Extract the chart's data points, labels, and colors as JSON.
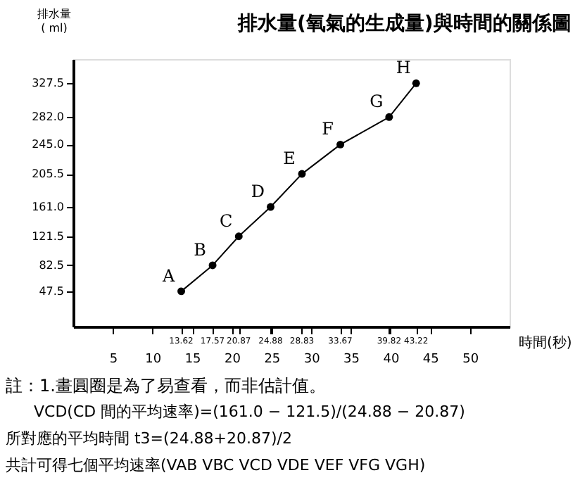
{
  "chart_data": {
    "type": "line",
    "title": "排水量(氧氣的生成量)與時間的關係圖",
    "xlabel": "時間(秒)",
    "ylabel": "排水量\n( ml)",
    "x": [
      13.62,
      17.57,
      20.87,
      24.88,
      28.83,
      33.67,
      39.82,
      43.22
    ],
    "series": [
      {
        "color": "#000000",
        "values": [
          47.5,
          82.5,
          121.5,
          161.0,
          205.5,
          245.0,
          282.0,
          327.5
        ]
      }
    ],
    "xlim": [
      0,
      55
    ],
    "ylim": [
      0,
      360
    ],
    "xticks": [
      5,
      10,
      15,
      20,
      25,
      30,
      35,
      40,
      45,
      50
    ],
    "yticks": [
      {
        "value": 47.5,
        "label": "47.5"
      },
      {
        "value": 82.5,
        "label": "82.5"
      },
      {
        "value": 121.5,
        "label": "121.5"
      },
      {
        "value": 161.0,
        "label": "161.0"
      },
      {
        "value": 205.5,
        "label": "205.5"
      },
      {
        "value": 245.0,
        "label": "245.0"
      },
      {
        "value": 282.0,
        "label": "282.0"
      },
      {
        "value": 327.5,
        "label": "327.5"
      }
    ],
    "annotations": [
      {
        "text": "A",
        "x": 13.62,
        "y": 47.5
      },
      {
        "text": "B",
        "x": 17.57,
        "y": 82.5
      },
      {
        "text": "C",
        "x": 20.87,
        "y": 121.5
      },
      {
        "text": "D",
        "x": 24.88,
        "y": 161.0
      },
      {
        "text": "E",
        "x": 28.83,
        "y": 205.5
      },
      {
        "text": "F",
        "x": 33.67,
        "y": 245.0
      },
      {
        "text": "G",
        "x": 39.82,
        "y": 282.0
      },
      {
        "text": "H",
        "x": 43.22,
        "y": 327.5
      },
      "13.62",
      "17.57",
      "20.87",
      "24.88",
      "28.83",
      "33.67",
      "39.82",
      "43.22",
      "註：1.畫圓圈是為了易查看，而非估計值。",
      "VCD(CD 間的平均速率)=(161.0 − 121.5)/(24.88 − 20.87)",
      "所對應的平均時間 t3=(24.88+20.87)/2",
      "共計可得七個平均速率(VAB VBC VCD VDE VEF VFG VGH)"
    ],
    "grid": false,
    "marker": "circle",
    "line_style": "solid"
  }
}
